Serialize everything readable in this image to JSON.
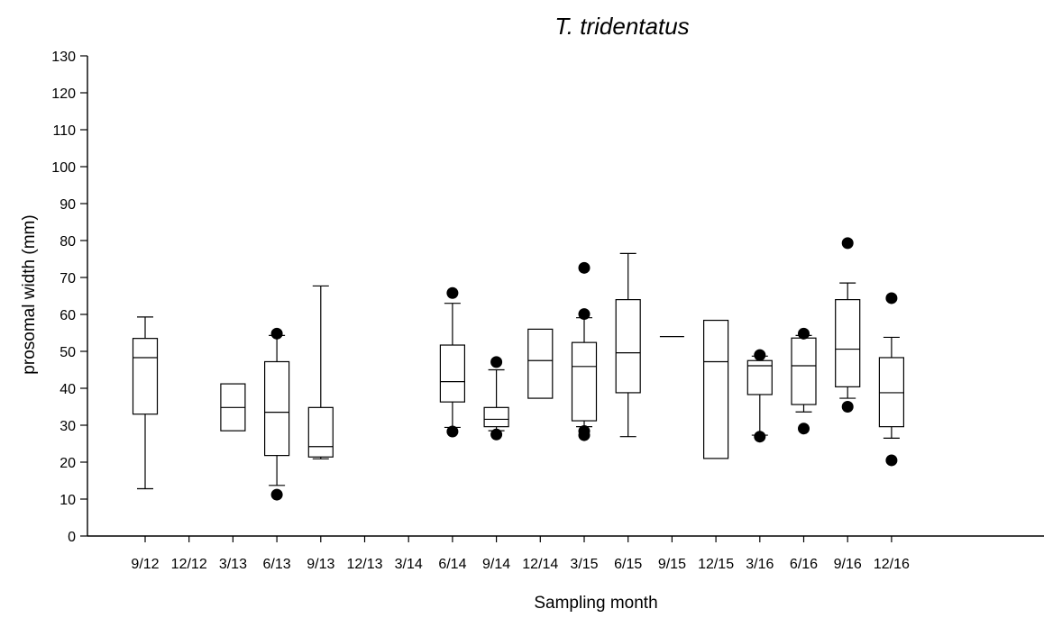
{
  "chart_data": {
    "type": "box",
    "title": "T. tridentatus",
    "xlabel": "Sampling month",
    "ylabel": "prosomal width (mm)",
    "ylim": [
      0,
      130
    ],
    "yticks": [
      0,
      10,
      20,
      30,
      40,
      50,
      60,
      70,
      80,
      90,
      100,
      110,
      120,
      130
    ],
    "grid": false,
    "categories": [
      "9/12",
      "12/12",
      "3/13",
      "6/13",
      "9/13",
      "12/13",
      "3/14",
      "6/14",
      "9/14",
      "12/14",
      "3/15",
      "6/15",
      "9/15",
      "12/15",
      "3/16",
      "6/16",
      "9/16",
      "12/16"
    ],
    "boxes": [
      {
        "category": "9/12",
        "whisker_low": 12.8,
        "q1": 33.0,
        "median": 48.3,
        "q3": 53.5,
        "whisker_high": 59.3,
        "outliers": []
      },
      {
        "category": "12/12",
        "whisker_low": null,
        "q1": null,
        "median": null,
        "q3": null,
        "whisker_high": null,
        "outliers": []
      },
      {
        "category": "3/13",
        "whisker_low": null,
        "q1": 28.5,
        "median": 34.8,
        "q3": 41.2,
        "whisker_high": null,
        "outliers": []
      },
      {
        "category": "6/13",
        "whisker_low": 13.7,
        "q1": 21.8,
        "median": 33.5,
        "q3": 47.2,
        "whisker_high": 54.3,
        "outliers": [
          11.2,
          54.8
        ]
      },
      {
        "category": "9/13",
        "whisker_low": 20.9,
        "q1": 21.4,
        "median": 24.2,
        "q3": 34.8,
        "whisker_high": 67.7,
        "outliers": []
      },
      {
        "category": "12/13",
        "whisker_low": null,
        "q1": null,
        "median": null,
        "q3": null,
        "whisker_high": null,
        "outliers": []
      },
      {
        "category": "3/14",
        "whisker_low": null,
        "q1": null,
        "median": null,
        "q3": null,
        "whisker_high": null,
        "outliers": []
      },
      {
        "category": "6/14",
        "whisker_low": 29.4,
        "q1": 36.3,
        "median": 41.8,
        "q3": 51.7,
        "whisker_high": 63.0,
        "outliers": [
          28.3,
          65.8
        ]
      },
      {
        "category": "9/14",
        "whisker_low": 28.5,
        "q1": 29.6,
        "median": 31.6,
        "q3": 34.8,
        "whisker_high": 45.0,
        "outliers": [
          27.5,
          47.1
        ]
      },
      {
        "category": "12/14",
        "whisker_low": null,
        "q1": 37.3,
        "median": 47.5,
        "q3": 56.0,
        "whisker_high": null,
        "outliers": []
      },
      {
        "category": "3/15",
        "whisker_low": 29.6,
        "q1": 31.2,
        "median": 45.9,
        "q3": 52.4,
        "whisker_high": 59.1,
        "outliers": [
          27.3,
          28.4,
          60.1,
          72.6
        ]
      },
      {
        "category": "6/15",
        "whisker_low": 26.9,
        "q1": 38.8,
        "median": 49.6,
        "q3": 64.0,
        "whisker_high": 76.5,
        "outliers": []
      },
      {
        "category": "9/15",
        "whisker_low": null,
        "q1": null,
        "median": 54.0,
        "q3": null,
        "whisker_high": null,
        "outliers": []
      },
      {
        "category": "12/15",
        "whisker_low": null,
        "q1": 21.0,
        "median": 47.2,
        "q3": 58.4,
        "whisker_high": null,
        "outliers": []
      },
      {
        "category": "3/16",
        "whisker_low": 27.3,
        "q1": 38.3,
        "median": 46.1,
        "q3": 47.5,
        "whisker_high": 48.7,
        "outliers": [
          26.9,
          49.0
        ]
      },
      {
        "category": "6/16",
        "whisker_low": 33.6,
        "q1": 35.6,
        "median": 46.1,
        "q3": 53.6,
        "whisker_high": 54.3,
        "outliers": [
          29.1,
          54.8
        ]
      },
      {
        "category": "9/16",
        "whisker_low": 37.3,
        "q1": 40.4,
        "median": 50.6,
        "q3": 64.0,
        "whisker_high": 68.5,
        "outliers": [
          35.0,
          79.3
        ]
      },
      {
        "category": "12/16",
        "whisker_low": 26.5,
        "q1": 29.6,
        "median": 38.8,
        "q3": 48.3,
        "whisker_high": 53.8,
        "outliers": [
          20.5,
          64.4
        ]
      }
    ]
  }
}
